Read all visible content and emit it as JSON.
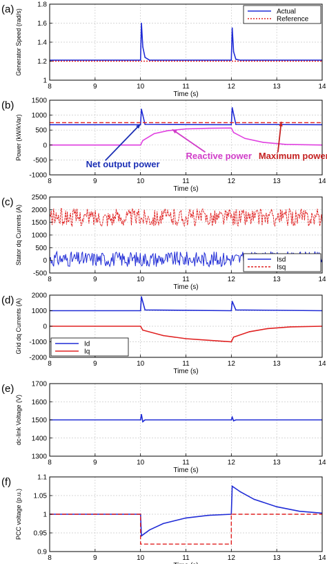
{
  "colors": {
    "blue": "#1f2bd6",
    "red": "#e02020",
    "magenta": "#e040e0",
    "grid": "#c8c8c8",
    "annot_blue": "#1b2fb5",
    "annot_magenta": "#d03cc8",
    "annot_red": "#c42020"
  },
  "chart_data": [
    {
      "type": "line",
      "panel_label": "(a)",
      "ylabel": "Generator Speed (rad/s)",
      "xlabel": "Time (s)",
      "xlim": [
        8,
        14
      ],
      "ylim": [
        1,
        1.8
      ],
      "xticks": [
        8,
        9,
        10,
        11,
        12,
        13,
        14
      ],
      "yticks": [
        1,
        1.2,
        1.4,
        1.6,
        1.8
      ],
      "ytick_labels": [
        "1",
        "1.2",
        "1.4",
        "1.6",
        "1.8"
      ],
      "grid": true,
      "legend": {
        "position": "top-right",
        "entries": [
          "Actual",
          "Reference"
        ]
      },
      "series": [
        {
          "name": "Actual",
          "color": "#1f2bd6",
          "style": "solid",
          "x": [
            8,
            10,
            10.02,
            10.05,
            10.1,
            10.2,
            12,
            12.02,
            12.05,
            12.1,
            12.2,
            14
          ],
          "y": [
            1.21,
            1.21,
            1.6,
            1.35,
            1.24,
            1.21,
            1.21,
            1.55,
            1.3,
            1.22,
            1.21,
            1.21
          ]
        },
        {
          "name": "Reference",
          "color": "#e02020",
          "style": "dotted",
          "x": [
            8,
            14
          ],
          "y": [
            1.2,
            1.2
          ]
        }
      ]
    },
    {
      "type": "line",
      "panel_label": "(b)",
      "ylabel": "Power (kW/kVar)",
      "xlabel": "Time (s)",
      "xlim": [
        8,
        14
      ],
      "ylim": [
        -1000,
        1500
      ],
      "xticks": [
        8,
        9,
        10,
        11,
        12,
        13,
        14
      ],
      "yticks": [
        -1000,
        -500,
        0,
        500,
        1000,
        1500
      ],
      "ytick_labels": [
        "-1000",
        "-500",
        "0",
        "500",
        "1000",
        "1500"
      ],
      "grid": true,
      "annotations": [
        {
          "text": "Net output power",
          "color": "#1b2fb5",
          "data_x": 8.8,
          "data_y": -750,
          "arrow_to": [
            10,
            700
          ]
        },
        {
          "text": "Reactive power",
          "color": "#d03cc8",
          "data_x": 11.0,
          "data_y": -470,
          "arrow_to": [
            10.7,
            520
          ]
        },
        {
          "text": "Maximum power",
          "color": "#c42020",
          "data_x": 12.6,
          "data_y": -470,
          "arrow_to": [
            13.1,
            780
          ]
        }
      ],
      "series": [
        {
          "name": "",
          "color": "#1f2bd6",
          "style": "solid",
          "x": [
            8,
            10,
            10.02,
            10.1,
            12,
            12.02,
            12.1,
            14
          ],
          "y": [
            680,
            680,
            1200,
            690,
            680,
            1250,
            690,
            680
          ]
        },
        {
          "name": "",
          "color": "#e02020",
          "style": "dashed",
          "x": [
            8,
            14
          ],
          "y": [
            750,
            750
          ]
        },
        {
          "name": "",
          "color": "#e040e0",
          "style": "solid",
          "x": [
            8,
            10,
            10.05,
            10.3,
            10.6,
            11,
            11.5,
            12,
            12.05,
            12.3,
            12.7,
            13.2,
            14
          ],
          "y": [
            0,
            0,
            150,
            380,
            480,
            540,
            560,
            570,
            420,
            220,
            90,
            20,
            0
          ]
        }
      ]
    },
    {
      "type": "line",
      "panel_label": "(c)",
      "ylabel": "Stator dq Currents (A)",
      "xlabel": "Time (s)",
      "xlim": [
        8,
        14
      ],
      "ylim": [
        -500,
        2500
      ],
      "xticks": [
        8,
        9,
        10,
        11,
        12,
        13,
        14
      ],
      "yticks": [
        -500,
        0,
        500,
        1000,
        1500,
        2000,
        2500
      ],
      "ytick_labels": [
        "-500",
        "0",
        "500",
        "1000",
        "1500",
        "2000",
        "2500"
      ],
      "grid": true,
      "legend": {
        "position": "bottom-right",
        "entries": [
          "Isd",
          "Isq"
        ]
      },
      "series": [
        {
          "name": "Isd",
          "color": "#1f2bd6",
          "style": "band",
          "center": 50,
          "half_width": 300
        },
        {
          "name": "Isq",
          "color": "#e02020",
          "style": "band",
          "center": 1700,
          "half_width": 350
        }
      ]
    },
    {
      "type": "line",
      "panel_label": "(d)",
      "ylabel": "Grid dq Currents (A)",
      "xlabel": "Time (s)",
      "xlim": [
        8,
        14
      ],
      "ylim": [
        -2000,
        2000
      ],
      "xticks": [
        8,
        9,
        10,
        11,
        12,
        13,
        14
      ],
      "yticks": [
        -2000,
        -1000,
        0,
        1000,
        2000
      ],
      "ytick_labels": [
        "-2000",
        "-1000",
        "0",
        "1000",
        "2000"
      ],
      "grid": true,
      "legend": {
        "position": "bottom-left",
        "entries": [
          "Id",
          "Iq"
        ]
      },
      "series": [
        {
          "name": "Id",
          "color": "#1f2bd6",
          "style": "solid",
          "x": [
            8,
            10,
            10.02,
            10.1,
            12,
            12.02,
            12.1,
            14
          ],
          "y": [
            1000,
            1000,
            1900,
            1050,
            1000,
            1600,
            1050,
            1000
          ]
        },
        {
          "name": "Iq",
          "color": "#e02020",
          "style": "solid",
          "x": [
            8,
            10,
            10.05,
            10.5,
            11,
            11.5,
            12,
            12.05,
            12.4,
            12.8,
            13.3,
            14
          ],
          "y": [
            0,
            0,
            -250,
            -600,
            -800,
            -900,
            -1000,
            -700,
            -350,
            -150,
            -40,
            0
          ]
        }
      ]
    },
    {
      "type": "line",
      "panel_label": "(e)",
      "ylabel": "dc-link Voltage (V)",
      "xlabel": "Time (s)",
      "xlim": [
        8,
        14
      ],
      "ylim": [
        1300,
        1700
      ],
      "xticks": [
        8,
        9,
        10,
        11,
        12,
        13,
        14
      ],
      "yticks": [
        1300,
        1400,
        1500,
        1600,
        1700
      ],
      "ytick_labels": [
        "1300",
        "1400",
        "1500",
        "1600",
        "1700"
      ],
      "grid": true,
      "series": [
        {
          "name": "",
          "color": "#1f2bd6",
          "style": "solid",
          "x": [
            8,
            10,
            10.02,
            10.05,
            10.1,
            12,
            12.02,
            12.05,
            12.1,
            14
          ],
          "y": [
            1500,
            1500,
            1530,
            1490,
            1500,
            1500,
            1515,
            1495,
            1500,
            1500
          ]
        }
      ]
    },
    {
      "type": "line",
      "panel_label": "(f)",
      "ylabel": "PCC voltage (p.u.)",
      "xlabel": "Time (s)",
      "xlim": [
        8,
        14
      ],
      "ylim": [
        0.9,
        1.1
      ],
      "xticks": [
        8,
        9,
        10,
        11,
        12,
        13,
        14
      ],
      "yticks": [
        0.9,
        0.95,
        1,
        1.05,
        1.1
      ],
      "ytick_labels": [
        "0.9",
        "0.95",
        "1",
        "1.05",
        "1.1"
      ],
      "grid": true,
      "series": [
        {
          "name": "",
          "color": "#1f2bd6",
          "style": "solid",
          "x": [
            8,
            10,
            10.02,
            10.2,
            10.5,
            11,
            11.5,
            12,
            12.02,
            12.2,
            12.5,
            13,
            13.5,
            14
          ],
          "y": [
            1,
            1,
            0.942,
            0.958,
            0.975,
            0.99,
            0.997,
            1.0,
            1.075,
            1.06,
            1.04,
            1.02,
            1.008,
            1.003
          ]
        },
        {
          "name": "",
          "color": "#e02020",
          "style": "dashed",
          "x": [
            8,
            10,
            10,
            12,
            12,
            14
          ],
          "y": [
            1,
            1,
            0.92,
            0.92,
            1,
            1
          ]
        }
      ]
    }
  ]
}
